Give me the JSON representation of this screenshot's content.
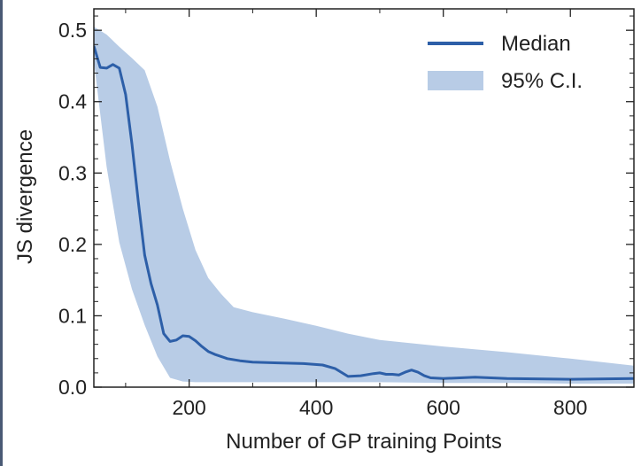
{
  "colors": {
    "median_line": "#2d5fa8",
    "ci_band": "#b8cce6",
    "axis": "#222222",
    "frame_border": "#4a5a75"
  },
  "chart_data": {
    "type": "line",
    "title": "",
    "xlabel": "Number of GP training Points",
    "ylabel": "JS divergence",
    "xlim": [
      50,
      900
    ],
    "ylim": [
      0.0,
      0.53
    ],
    "xticks": [
      200,
      400,
      600,
      800
    ],
    "xtick_labels": [
      "200",
      "400",
      "600",
      "800"
    ],
    "yticks": [
      0.0,
      0.1,
      0.2,
      0.3,
      0.4,
      0.5
    ],
    "ytick_labels": [
      "0.0",
      "0.1",
      "0.2",
      "0.3",
      "0.4",
      "0.5"
    ],
    "grid": false,
    "legend_position": "top-right",
    "legend": [
      "Median",
      "95% C.I."
    ],
    "series": [
      {
        "name": "Median",
        "type": "line",
        "x": [
          50,
          60,
          70,
          80,
          90,
          100,
          110,
          120,
          130,
          140,
          150,
          160,
          170,
          180,
          190,
          200,
          210,
          220,
          230,
          240,
          260,
          280,
          300,
          340,
          380,
          410,
          430,
          450,
          470,
          490,
          500,
          510,
          520,
          530,
          540,
          550,
          560,
          570,
          580,
          600,
          650,
          700,
          800,
          900
        ],
        "y": [
          0.478,
          0.448,
          0.447,
          0.452,
          0.447,
          0.41,
          0.34,
          0.26,
          0.185,
          0.145,
          0.115,
          0.075,
          0.064,
          0.066,
          0.072,
          0.071,
          0.065,
          0.057,
          0.05,
          0.046,
          0.04,
          0.037,
          0.035,
          0.034,
          0.033,
          0.031,
          0.026,
          0.015,
          0.016,
          0.019,
          0.02,
          0.018,
          0.018,
          0.017,
          0.021,
          0.024,
          0.021,
          0.016,
          0.013,
          0.012,
          0.014,
          0.012,
          0.011,
          0.012
        ]
      },
      {
        "name": "95% C.I.",
        "type": "band",
        "x": [
          50,
          70,
          90,
          110,
          130,
          150,
          170,
          190,
          210,
          230,
          250,
          270,
          300,
          350,
          400,
          450,
          500,
          600,
          700,
          800,
          900
        ],
        "upper": [
          0.505,
          0.494,
          0.477,
          0.461,
          0.444,
          0.393,
          0.317,
          0.25,
          0.192,
          0.153,
          0.131,
          0.112,
          0.105,
          0.096,
          0.086,
          0.075,
          0.066,
          0.057,
          0.049,
          0.04,
          0.03
        ],
        "lower": [
          0.457,
          0.309,
          0.203,
          0.137,
          0.087,
          0.043,
          0.013,
          0.008,
          0.007,
          0.007,
          0.007,
          0.007,
          0.007,
          0.007,
          0.007,
          0.007,
          0.007,
          0.006,
          0.006,
          0.005,
          0.005
        ]
      }
    ]
  }
}
